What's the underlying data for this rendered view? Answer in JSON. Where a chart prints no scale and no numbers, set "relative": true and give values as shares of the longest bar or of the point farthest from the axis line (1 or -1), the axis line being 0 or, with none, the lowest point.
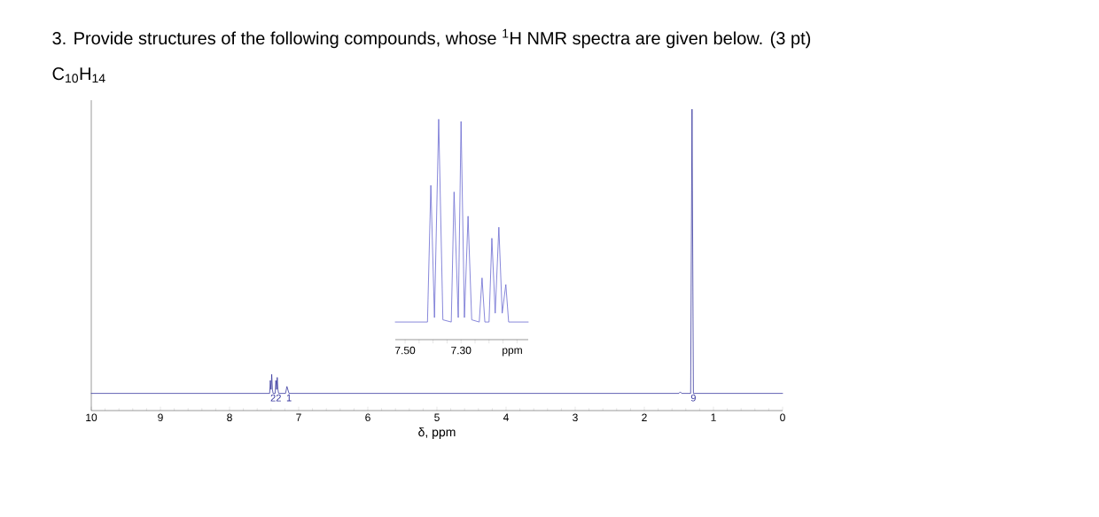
{
  "chart_data": [
    {
      "type": "line",
      "title": "3. Provide structures of the following compounds, whose $^{1}$H NMR spectra are given below. (3 pt)",
      "subtitle": "C$_{10}$H$_{14}$",
      "xlabel": "δ, ppm",
      "relative": true,
      "tick_labels": "x",
      "xlim": [
        10,
        0
      ],
      "xticks": [
        10,
        9,
        8,
        7,
        6,
        5,
        4,
        3,
        2,
        1,
        0
      ],
      "series": [
        {
          "color": "#3a3aa0",
          "x": [
            10,
            7.45,
            7.42,
            7.41,
            7.4,
            7.39,
            7.38,
            7.37,
            7.34,
            7.33,
            7.32,
            7.31,
            7.3,
            7.29,
            7.19,
            7.17,
            7.14,
            1.5,
            1.48,
            1.46,
            1.33,
            1.31,
            1.29,
            0
          ],
          "values": [
            0.057,
            0.057,
            0.057,
            0.1,
            0.07,
            0.12,
            0.07,
            0.057,
            0.057,
            0.1,
            0.07,
            0.11,
            0.07,
            0.057,
            0.057,
            0.08,
            0.057,
            0.057,
            0.062,
            0.057,
            0.057,
            1,
            0.057,
            0.057
          ]
        }
      ],
      "annotations": [
        {
          "text": "2",
          "x": 7.37,
          "y": 0.057
        },
        {
          "text": "2",
          "x": 7.29,
          "y": 0.057
        },
        {
          "text": "1",
          "x": 7.14,
          "y": 0.057
        },
        {
          "text": "9",
          "x": 1.29,
          "y": 0.057
        }
      ]
    },
    {
      "type": "line",
      "xlabel": "ppm",
      "relative": true,
      "tick_labels": "x",
      "xlim": [
        7.535,
        7.06
      ],
      "xticks": [
        {
          "value": 7.5,
          "label": "7.50"
        },
        {
          "value": 7.45,
          "label": null
        },
        {
          "value": 7.4,
          "label": null
        },
        {
          "value": 7.35,
          "label": null
        },
        {
          "value": 7.3,
          "label": "7.30"
        },
        {
          "value": 7.25,
          "label": null
        },
        {
          "value": 7.2,
          "label": null
        },
        {
          "value": 7.15,
          "label": null
        },
        {
          "value": 7.1,
          "label": null
        }
      ],
      "series": [
        {
          "color": "#6a6ad0",
          "x": [
            7.535,
            7.42,
            7.408,
            7.395,
            7.38,
            7.365,
            7.335,
            7.325,
            7.31,
            7.3,
            7.288,
            7.275,
            7.262,
            7.235,
            7.225,
            7.215,
            7.2,
            7.19,
            7.178,
            7.165,
            7.153,
            7.14,
            7.13,
            7.06
          ],
          "values": [
            0.08,
            0.08,
            0.7,
            0.1,
            1.0,
            0.09,
            0.08,
            0.67,
            0.1,
            0.99,
            0.1,
            0.56,
            0.09,
            0.08,
            0.28,
            0.08,
            0.08,
            0.46,
            0.12,
            0.51,
            0.12,
            0.25,
            0.08,
            0.08
          ]
        }
      ]
    }
  ]
}
